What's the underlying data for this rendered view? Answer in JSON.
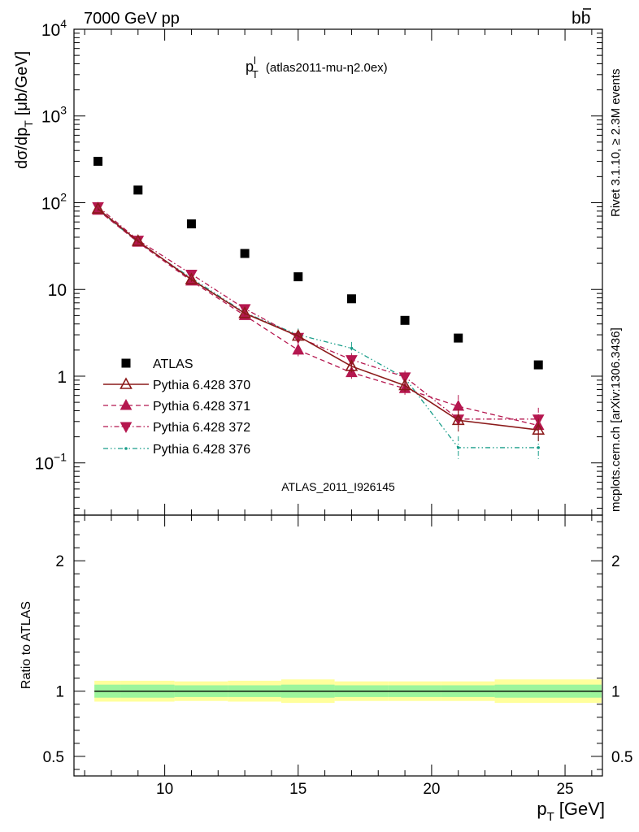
{
  "header": {
    "left": "7000 GeV pp",
    "right_main": "b",
    "right_bar": "b",
    "plot_title_main": "p",
    "plot_title_sup": "l",
    "plot_title_sub": "T",
    "plot_title_extra": "(atlas2011-mu-η2.0ex)"
  },
  "side_labels": {
    "rivet": "Rivet 3.1.10, ≥ 2.3M events",
    "mcplots": "mcplots.cern.ch [arXiv:1306.3436]"
  },
  "analysis_label": "ATLAS_2011_I926145",
  "chart_data": [
    {
      "type": "scatter",
      "ylabel_main": "dσ/dp",
      "ylabel_sub": "T",
      "ylabel_units": "[μb/GeV]",
      "yscale": "log",
      "ylim": [
        0.025,
        10000
      ],
      "xlim": [
        6.6,
        26.4
      ],
      "y_ticks": [
        {
          "value": 10000,
          "base": "10",
          "exp": "4"
        },
        {
          "value": 1000,
          "base": "10",
          "exp": "3"
        },
        {
          "value": 100,
          "base": "10",
          "exp": "2"
        },
        {
          "value": 10,
          "base": "10",
          "exp": ""
        },
        {
          "value": 1,
          "base": "1",
          "exp": ""
        },
        {
          "value": 0.1,
          "base": "10",
          "exp": "−1"
        }
      ],
      "legend_position": "bottom-left",
      "series": [
        {
          "name": "ATLAS",
          "style": "data",
          "color": "#000000",
          "marker": "square",
          "x": [
            7.5,
            9,
            11,
            13,
            15,
            17,
            19,
            21,
            24
          ],
          "y": [
            300,
            140,
            57,
            26,
            14,
            7.8,
            4.4,
            2.75,
            1.35
          ]
        },
        {
          "name": "Pythia 6.428 370",
          "style": "solid",
          "color": "#8b1a1a",
          "marker": "triangle-up-open",
          "x": [
            7.5,
            9,
            11,
            13,
            15,
            17,
            19,
            21,
            24
          ],
          "y": [
            85,
            36,
            13,
            5.3,
            2.9,
            1.3,
            0.78,
            0.31,
            0.24
          ]
        },
        {
          "name": "Pythia 6.428 371",
          "style": "dashed",
          "color": "#b5174f",
          "marker": "triangle-up",
          "x": [
            7.5,
            9,
            11,
            13,
            15,
            17,
            19,
            21,
            24
          ],
          "y": [
            82,
            35,
            12.5,
            5.0,
            2.0,
            1.1,
            0.72,
            0.45,
            0.27
          ]
        },
        {
          "name": "Pythia 6.428 372",
          "style": "dashdot",
          "color": "#b5174f",
          "marker": "triangle-down",
          "x": [
            7.5,
            9,
            11,
            13,
            15,
            17,
            19,
            21,
            24
          ],
          "y": [
            90,
            37,
            15,
            6.0,
            2.8,
            1.55,
            0.98,
            0.32,
            0.32
          ]
        },
        {
          "name": "Pythia 6.428 376",
          "style": "dashdotdot",
          "color": "#1a9e8a",
          "marker": "dot",
          "x": [
            7.5,
            9,
            11,
            13,
            15,
            17,
            19,
            21,
            24
          ],
          "y": [
            83,
            35,
            13.5,
            5.4,
            3.0,
            2.1,
            0.95,
            0.15,
            0.15
          ]
        }
      ]
    },
    {
      "type": "band",
      "ylabel": "Ratio to ATLAS",
      "xlabel_main": "p",
      "xlabel_sub": "T",
      "xlabel_units": "[GeV]",
      "xlim": [
        6.6,
        26.4
      ],
      "ylim": [
        0.35,
        2.35
      ],
      "x_ticks": [
        10,
        15,
        20,
        25
      ],
      "y_ticks": [
        0.5,
        1,
        2
      ],
      "bins": [
        {
          "lo": 7,
          "hi": 8,
          "inner": [
            0.95,
            1.05
          ],
          "outer": [
            0.92,
            1.08
          ]
        },
        {
          "lo": 8,
          "hi": 10,
          "inner": [
            0.95,
            1.05
          ],
          "outer": [
            0.92,
            1.08
          ]
        },
        {
          "lo": 10,
          "hi": 12,
          "inner": [
            0.955,
            1.045
          ],
          "outer": [
            0.925,
            1.075
          ]
        },
        {
          "lo": 12,
          "hi": 14,
          "inner": [
            0.955,
            1.045
          ],
          "outer": [
            0.92,
            1.08
          ]
        },
        {
          "lo": 14,
          "hi": 16,
          "inner": [
            0.95,
            1.05
          ],
          "outer": [
            0.91,
            1.09
          ]
        },
        {
          "lo": 16,
          "hi": 18,
          "inner": [
            0.955,
            1.045
          ],
          "outer": [
            0.925,
            1.075
          ]
        },
        {
          "lo": 18,
          "hi": 20,
          "inner": [
            0.955,
            1.045
          ],
          "outer": [
            0.925,
            1.075
          ]
        },
        {
          "lo": 20,
          "hi": 22,
          "inner": [
            0.955,
            1.045
          ],
          "outer": [
            0.925,
            1.075
          ]
        },
        {
          "lo": 22,
          "hi": 26,
          "inner": [
            0.95,
            1.05
          ],
          "outer": [
            0.91,
            1.09
          ]
        }
      ],
      "inner_color": "#9cf59c",
      "outer_color": "#ffff9c"
    }
  ]
}
